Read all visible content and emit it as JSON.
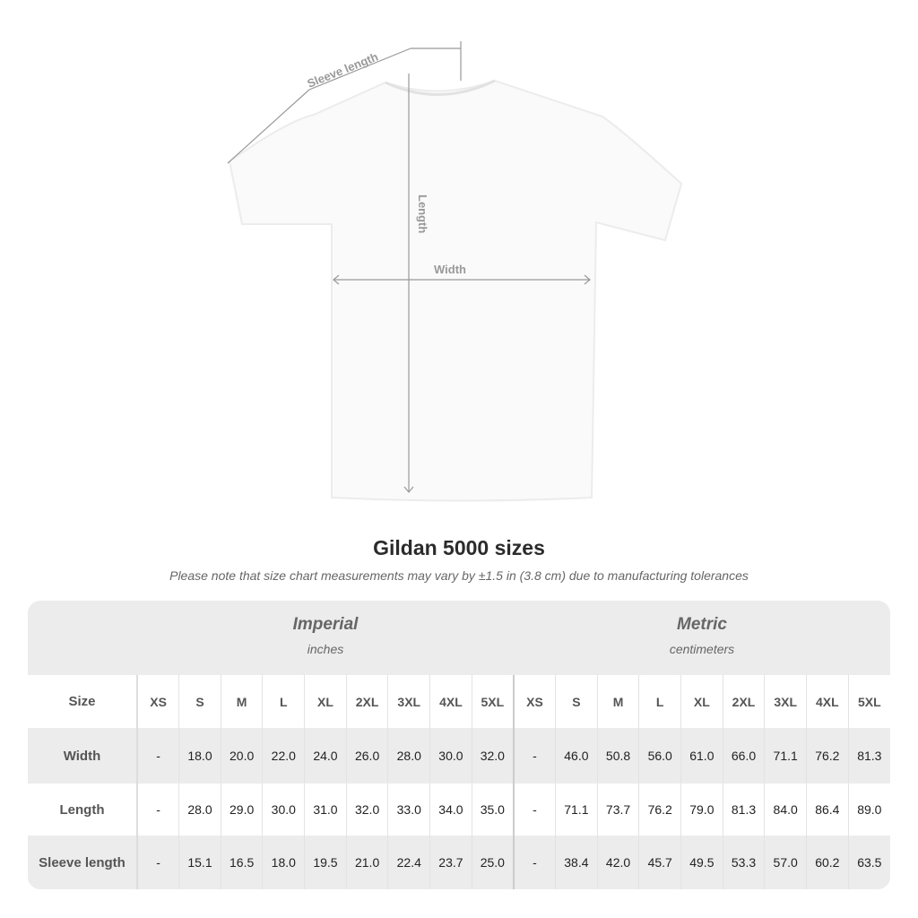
{
  "diagram": {
    "sleeve_label": "Sleeve length",
    "length_label": "Length",
    "width_label": "Width"
  },
  "title": "Gildan 5000 sizes",
  "note": "Please note that size chart measurements may vary by ±1.5 in (3.8 cm) due to manufacturing tolerances",
  "imperial": {
    "heading": "Imperial",
    "unit": "inches"
  },
  "metric": {
    "heading": "Metric",
    "unit": "centimeters"
  },
  "table": {
    "size_label": "Size",
    "sizes": [
      "XS",
      "S",
      "M",
      "L",
      "XL",
      "2XL",
      "3XL",
      "4XL",
      "5XL"
    ],
    "rows": [
      {
        "label": "Width",
        "imperial": [
          "-",
          "18.0",
          "20.0",
          "22.0",
          "24.0",
          "26.0",
          "28.0",
          "30.0",
          "32.0"
        ],
        "metric": [
          "-",
          "46.0",
          "50.8",
          "56.0",
          "61.0",
          "66.0",
          "71.1",
          "76.2",
          "81.3"
        ]
      },
      {
        "label": "Length",
        "imperial": [
          "-",
          "28.0",
          "29.0",
          "30.0",
          "31.0",
          "32.0",
          "33.0",
          "34.0",
          "35.0"
        ],
        "metric": [
          "-",
          "71.1",
          "73.7",
          "76.2",
          "79.0",
          "81.3",
          "84.0",
          "86.4",
          "89.0"
        ]
      },
      {
        "label": "Sleeve length",
        "imperial": [
          "-",
          "15.1",
          "16.5",
          "18.0",
          "19.5",
          "21.0",
          "22.4",
          "23.7",
          "25.0"
        ],
        "metric": [
          "-",
          "38.4",
          "42.0",
          "45.7",
          "49.5",
          "53.3",
          "57.0",
          "60.2",
          "63.5"
        ]
      }
    ]
  }
}
